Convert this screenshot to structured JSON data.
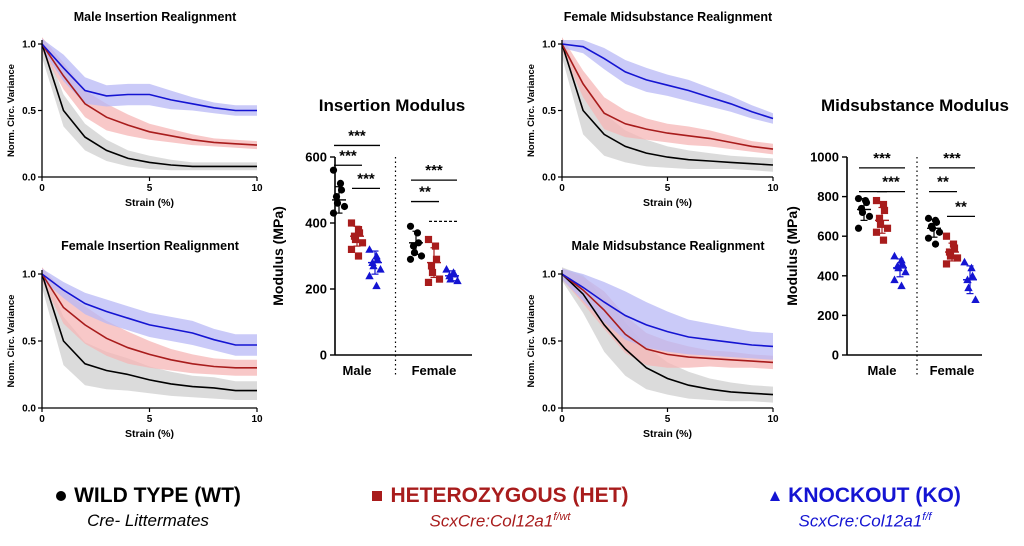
{
  "colors": {
    "wt": "#000000",
    "het": "#a81c1c",
    "ko": "#1414d2",
    "wt_band": "#cfcfcf",
    "het_band": "#f5b5b5",
    "ko_band": "#b8b8f5"
  },
  "chart_data": [
    {
      "type": "line",
      "title": "Male Insertion Realignment",
      "xlabel": "Strain (%)",
      "ylabel": "Norm. Circ. Variance",
      "xlim": [
        0,
        10
      ],
      "ylim": [
        0,
        1.0
      ],
      "xticks": [
        "0",
        "5",
        "10"
      ],
      "yticks": [
        "0.0",
        "0.5",
        "1.0"
      ],
      "x": [
        0,
        1,
        2,
        3,
        4,
        5,
        6,
        7,
        8,
        9,
        10
      ],
      "series": [
        {
          "key": "wt",
          "values": [
            1.0,
            0.5,
            0.3,
            0.2,
            0.14,
            0.11,
            0.09,
            0.08,
            0.08,
            0.08,
            0.08
          ],
          "band": [
            0.1,
            0.12,
            0.1,
            0.08,
            0.06,
            0.05,
            0.04,
            0.03,
            0.03,
            0.03,
            0.03
          ]
        },
        {
          "key": "het",
          "values": [
            1.0,
            0.76,
            0.55,
            0.45,
            0.39,
            0.34,
            0.31,
            0.28,
            0.26,
            0.25,
            0.24
          ],
          "band": [
            0.05,
            0.1,
            0.1,
            0.1,
            0.08,
            0.06,
            0.05,
            0.04,
            0.03,
            0.03,
            0.03
          ]
        },
        {
          "key": "ko",
          "values": [
            1.0,
            0.82,
            0.65,
            0.61,
            0.62,
            0.62,
            0.58,
            0.55,
            0.52,
            0.5,
            0.5
          ],
          "band": [
            0.04,
            0.1,
            0.1,
            0.08,
            0.08,
            0.08,
            0.07,
            0.05,
            0.04,
            0.04,
            0.04
          ]
        }
      ]
    },
    {
      "type": "line",
      "title": "Female Insertion Realignment",
      "xlabel": "Strain (%)",
      "ylabel": "Norm. Circ. Variance",
      "xlim": [
        0,
        10
      ],
      "ylim": [
        0,
        1.0
      ],
      "xticks": [
        "0",
        "5",
        "10"
      ],
      "yticks": [
        "0.0",
        "0.5",
        "1.0"
      ],
      "x": [
        0,
        1,
        2,
        3,
        4,
        5,
        6,
        7,
        8,
        9,
        10
      ],
      "series": [
        {
          "key": "wt",
          "values": [
            1.0,
            0.5,
            0.33,
            0.28,
            0.25,
            0.21,
            0.18,
            0.16,
            0.15,
            0.13,
            0.13
          ],
          "band": [
            0.1,
            0.18,
            0.16,
            0.14,
            0.12,
            0.1,
            0.09,
            0.08,
            0.08,
            0.07,
            0.07
          ]
        },
        {
          "key": "het",
          "values": [
            1.0,
            0.75,
            0.62,
            0.52,
            0.45,
            0.4,
            0.36,
            0.33,
            0.31,
            0.3,
            0.3
          ],
          "band": [
            0.05,
            0.12,
            0.14,
            0.13,
            0.12,
            0.1,
            0.08,
            0.07,
            0.06,
            0.06,
            0.06
          ]
        },
        {
          "key": "ko",
          "values": [
            1.0,
            0.88,
            0.78,
            0.72,
            0.67,
            0.62,
            0.59,
            0.56,
            0.51,
            0.47,
            0.47
          ],
          "band": [
            0.04,
            0.06,
            0.08,
            0.09,
            0.09,
            0.09,
            0.09,
            0.09,
            0.08,
            0.08,
            0.08
          ]
        }
      ]
    },
    {
      "type": "line",
      "title": "Female Midsubstance Realignment",
      "xlabel": "Strain (%)",
      "ylabel": "Norm. Circ. Variance",
      "xlim": [
        0,
        10
      ],
      "ylim": [
        0,
        1.0
      ],
      "xticks": [
        "0",
        "5",
        "10"
      ],
      "yticks": [
        "0.0",
        "0.5",
        "1.0"
      ],
      "x": [
        0,
        1,
        2,
        3,
        4,
        5,
        6,
        7,
        8,
        9,
        10
      ],
      "series": [
        {
          "key": "wt",
          "values": [
            1.0,
            0.5,
            0.32,
            0.23,
            0.18,
            0.15,
            0.13,
            0.12,
            0.11,
            0.1,
            0.09
          ],
          "band": [
            0.1,
            0.18,
            0.16,
            0.12,
            0.1,
            0.08,
            0.07,
            0.06,
            0.05,
            0.05,
            0.05
          ]
        },
        {
          "key": "het",
          "values": [
            1.0,
            0.7,
            0.48,
            0.4,
            0.36,
            0.33,
            0.31,
            0.29,
            0.26,
            0.23,
            0.21
          ],
          "band": [
            0.05,
            0.1,
            0.12,
            0.1,
            0.08,
            0.07,
            0.07,
            0.06,
            0.05,
            0.04,
            0.04
          ]
        },
        {
          "key": "ko",
          "values": [
            1.0,
            0.98,
            0.89,
            0.79,
            0.73,
            0.69,
            0.65,
            0.6,
            0.55,
            0.49,
            0.44
          ],
          "band": [
            0.03,
            0.05,
            0.08,
            0.09,
            0.09,
            0.08,
            0.08,
            0.07,
            0.06,
            0.05,
            0.04
          ]
        }
      ]
    },
    {
      "type": "line",
      "title": "Male Midsubstance Realignment",
      "xlabel": "Strain (%)",
      "ylabel": "Norm. Circ. Variance",
      "xlim": [
        0,
        10
      ],
      "ylim": [
        0,
        1.0
      ],
      "xticks": [
        "0",
        "5",
        "10"
      ],
      "yticks": [
        "0.0",
        "0.5",
        "1.0"
      ],
      "x": [
        0,
        1,
        2,
        3,
        4,
        5,
        6,
        7,
        8,
        9,
        10
      ],
      "series": [
        {
          "key": "wt",
          "values": [
            1.0,
            0.85,
            0.62,
            0.44,
            0.3,
            0.22,
            0.17,
            0.14,
            0.12,
            0.11,
            0.1
          ],
          "band": [
            0.05,
            0.14,
            0.2,
            0.2,
            0.16,
            0.12,
            0.1,
            0.08,
            0.07,
            0.06,
            0.06
          ]
        },
        {
          "key": "het",
          "values": [
            1.0,
            0.88,
            0.73,
            0.55,
            0.44,
            0.4,
            0.38,
            0.37,
            0.36,
            0.35,
            0.34
          ],
          "band": [
            0.04,
            0.1,
            0.14,
            0.14,
            0.12,
            0.1,
            0.08,
            0.06,
            0.06,
            0.05,
            0.05
          ]
        },
        {
          "key": "ko",
          "values": [
            1.0,
            0.9,
            0.79,
            0.69,
            0.62,
            0.57,
            0.53,
            0.51,
            0.49,
            0.47,
            0.46
          ],
          "band": [
            0.04,
            0.1,
            0.15,
            0.18,
            0.17,
            0.15,
            0.13,
            0.12,
            0.11,
            0.1,
            0.1
          ]
        }
      ]
    },
    {
      "type": "scatter",
      "title": "Insertion Modulus",
      "ylabel": "Modulus  (MPa)",
      "ylim": [
        0,
        600
      ],
      "yticks": [
        "0",
        "200",
        "400",
        "600"
      ],
      "groups": [
        "Male",
        "Female"
      ],
      "series": [
        {
          "key": "wt",
          "group": "Male",
          "points": [
            560,
            520,
            500,
            480,
            460,
            450,
            430
          ],
          "mean": 470,
          "sd": 40
        },
        {
          "key": "het",
          "group": "Male",
          "points": [
            400,
            380,
            370,
            360,
            350,
            340,
            320,
            300
          ],
          "mean": 360,
          "sd": 30
        },
        {
          "key": "ko",
          "group": "Male",
          "points": [
            320,
            300,
            290,
            280,
            270,
            260,
            240,
            210
          ],
          "mean": 280,
          "sd": 35
        },
        {
          "key": "wt",
          "group": "Female",
          "points": [
            390,
            370,
            340,
            330,
            310,
            300,
            290
          ],
          "mean": 340,
          "sd": 35
        },
        {
          "key": "het",
          "group": "Female",
          "points": [
            350,
            330,
            290,
            270,
            250,
            230,
            220
          ],
          "mean": 280,
          "sd": 45
        },
        {
          "key": "ko",
          "group": "Female",
          "points": [
            260,
            250,
            245,
            240,
            230,
            225
          ],
          "mean": 240,
          "sd": 15
        }
      ],
      "significance": [
        {
          "group": "Male",
          "from": "wt",
          "to": "ko",
          "label": "***",
          "y": 635
        },
        {
          "group": "Male",
          "from": "wt",
          "to": "het",
          "label": "***",
          "y": 575
        },
        {
          "group": "Male",
          "from": "het",
          "to": "ko",
          "label": "***",
          "y": 505
        },
        {
          "group": "Female",
          "from": "wt",
          "to": "ko",
          "label": "***",
          "y": 530
        },
        {
          "group": "Female",
          "from": "wt",
          "to": "het",
          "label": "**",
          "y": 465
        },
        {
          "group": "Female",
          "from": "het",
          "to": "ko",
          "label": "",
          "y": 405,
          "dashed": true
        }
      ]
    },
    {
      "type": "scatter",
      "title": "Midsubstance Modulus",
      "ylabel": "Modulus  (MPa)",
      "ylim": [
        0,
        1000
      ],
      "yticks": [
        "0",
        "200",
        "400",
        "600",
        "800",
        "1000"
      ],
      "groups": [
        "Male",
        "Female"
      ],
      "series": [
        {
          "key": "wt",
          "group": "Male",
          "points": [
            790,
            780,
            770,
            740,
            720,
            700,
            640
          ],
          "mean": 735,
          "sd": 55
        },
        {
          "key": "het",
          "group": "Male",
          "points": [
            780,
            760,
            730,
            690,
            660,
            640,
            620,
            580
          ],
          "mean": 680,
          "sd": 65
        },
        {
          "key": "ko",
          "group": "Male",
          "points": [
            500,
            480,
            460,
            450,
            440,
            420,
            380,
            350
          ],
          "mean": 440,
          "sd": 45
        },
        {
          "key": "wt",
          "group": "Female",
          "points": [
            690,
            680,
            670,
            650,
            640,
            620,
            590,
            560
          ],
          "mean": 640,
          "sd": 45
        },
        {
          "key": "het",
          "group": "Female",
          "points": [
            600,
            560,
            540,
            520,
            500,
            490,
            460
          ],
          "mean": 520,
          "sd": 45
        },
        {
          "key": "ko",
          "group": "Female",
          "points": [
            470,
            440,
            400,
            380,
            340,
            280
          ],
          "mean": 380,
          "sd": 70
        }
      ],
      "significance": [
        {
          "group": "Male",
          "from": "wt",
          "to": "ko",
          "label": "***",
          "y": 945
        },
        {
          "group": "Male",
          "from": "wt",
          "to": "het",
          "label": "",
          "y": 825
        },
        {
          "group": "Male",
          "from": "het",
          "to": "ko",
          "label": "***",
          "y": 825
        },
        {
          "group": "Female",
          "from": "wt",
          "to": "ko",
          "label": "***",
          "y": 945
        },
        {
          "group": "Female",
          "from": "wt",
          "to": "het",
          "label": "**",
          "y": 825
        },
        {
          "group": "Female",
          "from": "het",
          "to": "ko",
          "label": "**",
          "y": 700
        }
      ]
    }
  ],
  "legend": {
    "wt": {
      "main": "WILD TYPE (WT)",
      "sub": "Cre- Littermates"
    },
    "het": {
      "main": "HETEROZYGOUS (HET)",
      "sub_base": "ScxCre:Col12a1",
      "sub_sup": "f/wt"
    },
    "ko": {
      "main": "KNOCKOUT (KO)",
      "sub_base": "ScxCre:Col12a1",
      "sub_sup": "f/f"
    }
  }
}
